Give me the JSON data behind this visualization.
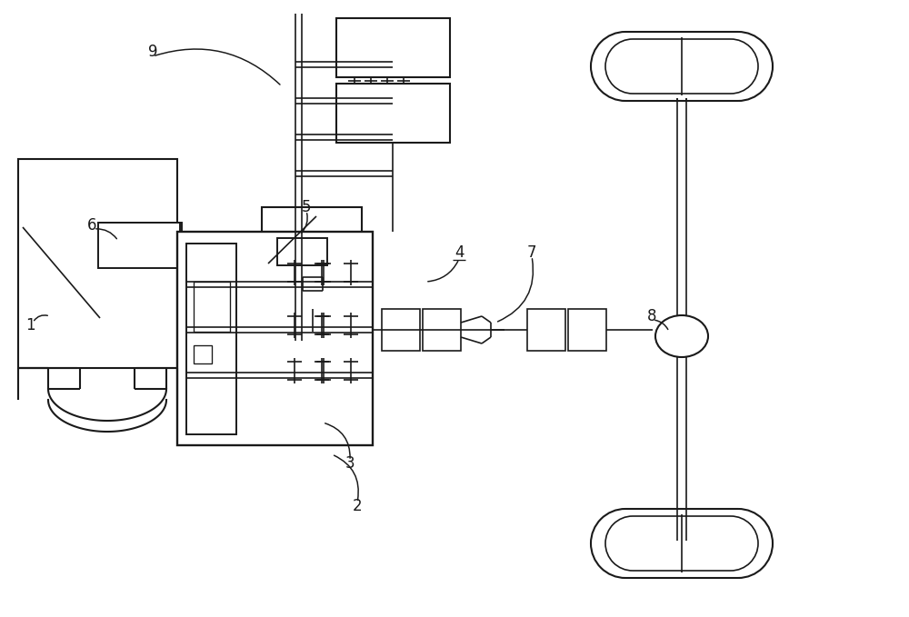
{
  "bg_color": "#ffffff",
  "line_color": "#1a1a1a",
  "lw": 1.2,
  "fig_width": 10.0,
  "fig_height": 6.79
}
